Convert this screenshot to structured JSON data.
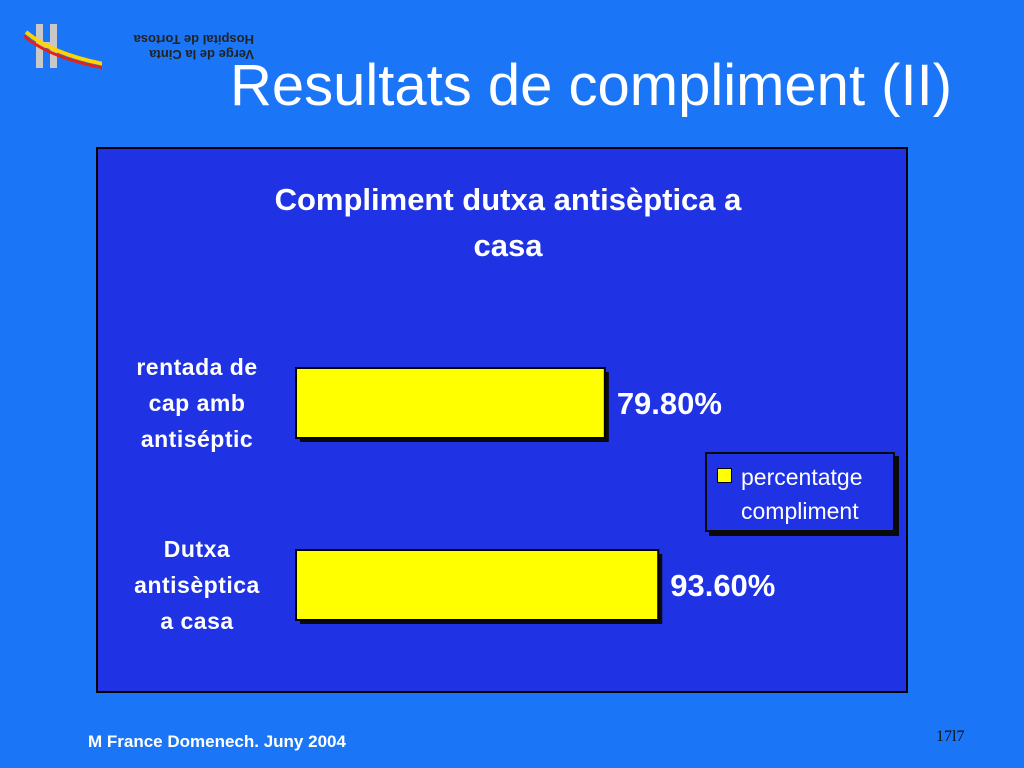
{
  "logo": {
    "text_line1": "Verge de la Cinta",
    "text_line2": "Hospital de Tortosa",
    "colors": [
      "#e2231a",
      "#ffd400",
      "#7a7aa0"
    ]
  },
  "slide": {
    "title": "Resultats de compliment (II)"
  },
  "chart_data": {
    "type": "bar",
    "orientation": "horizontal",
    "title_line1": "Compliment dutxa antisèptica a",
    "title_line2": "casa",
    "categories": [
      [
        "rentada de",
        "cap amb",
        "antiséptic"
      ],
      [
        "Dutxa",
        "antisèptica",
        "a casa"
      ]
    ],
    "series": [
      {
        "name": "percentatge compliment",
        "values": [
          79.8,
          93.6
        ],
        "labels": [
          "79.80%",
          "93.60%"
        ],
        "color": "#ffff00"
      }
    ],
    "legend": {
      "label_line1": "percentatge",
      "label_line2": "compliment",
      "placement": "right"
    },
    "xlim": [
      0,
      100
    ],
    "grid": false
  },
  "footer": {
    "author": "M France Domenech. Juny 2004",
    "page": "17l7"
  }
}
